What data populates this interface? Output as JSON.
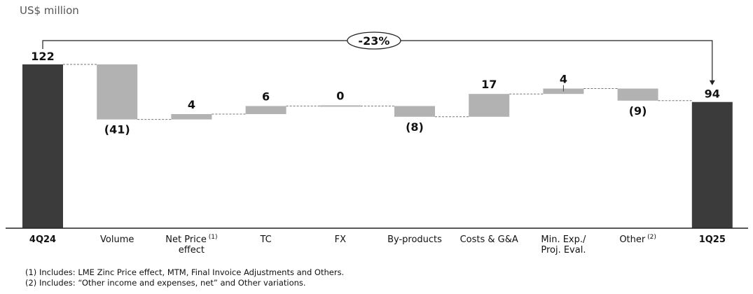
{
  "unit_label": "US$ million",
  "change_label": "-23%",
  "chart_data": {
    "type": "waterfall",
    "title": "",
    "unit": "US$ million",
    "ylim": [
      0,
      122
    ],
    "grid": false,
    "start": {
      "category": "4Q24",
      "value": 122,
      "label": "122"
    },
    "end": {
      "category": "1Q25",
      "value": 94,
      "label": "94"
    },
    "steps": [
      {
        "category": "Volume",
        "value": -41,
        "label": "(41)"
      },
      {
        "category": "Net Price effect",
        "sup": "(1)",
        "value": 4,
        "label": "4"
      },
      {
        "category": "TC",
        "value": 6,
        "label": "6"
      },
      {
        "category": "FX",
        "value": 0,
        "label": "0"
      },
      {
        "category": "By-products",
        "value": -8,
        "label": "(8)"
      },
      {
        "category": "Costs & G&A",
        "value": 17,
        "label": "17"
      },
      {
        "category": "Min. Exp./ Proj. Eval.",
        "value": 4,
        "label": "4"
      },
      {
        "category": "Other",
        "sup": "(2)",
        "value": -9,
        "label": "(9)"
      }
    ],
    "colors": {
      "total": "#3b3b3b",
      "step": "#b2b2b2",
      "connector": "#777777"
    }
  },
  "footnotes": [
    "(1) Includes: LME Zinc Price effect, MTM, Final Invoice Adjustments and Others.",
    "(2) Includes: “Other income and expenses, net” and Other variations."
  ]
}
